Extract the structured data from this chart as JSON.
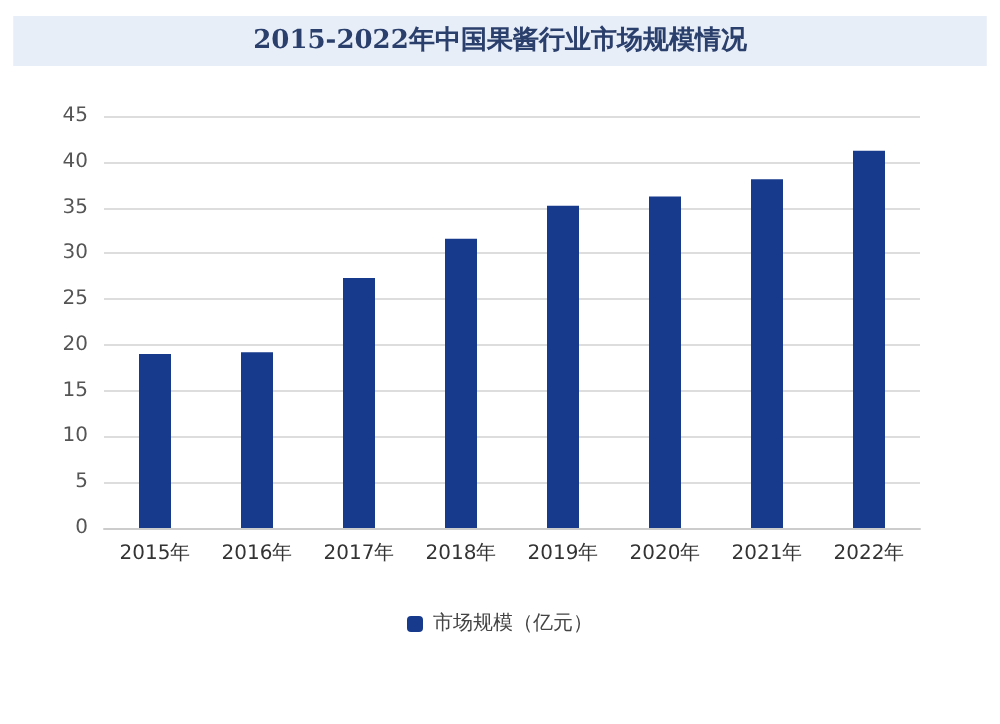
{
  "chart_data": {
    "type": "bar",
    "title": "2015-2022年中国果酱行业市场规模情况",
    "categories": [
      "2015年",
      "2016年",
      "2017年",
      "2018年",
      "2019年",
      "2020年",
      "2021年",
      "2022年"
    ],
    "series": [
      {
        "name": "市场规模（亿元）",
        "color": "#173a8c",
        "values": [
          19.0,
          19.2,
          27.3,
          31.6,
          35.2,
          36.2,
          38.1,
          41.2
        ]
      }
    ],
    "ylim": [
      0,
      45
    ],
    "yticks": [
      0,
      5,
      10,
      15,
      20,
      25,
      30,
      35,
      40,
      45
    ],
    "grid": "y",
    "legend": "bottom"
  }
}
